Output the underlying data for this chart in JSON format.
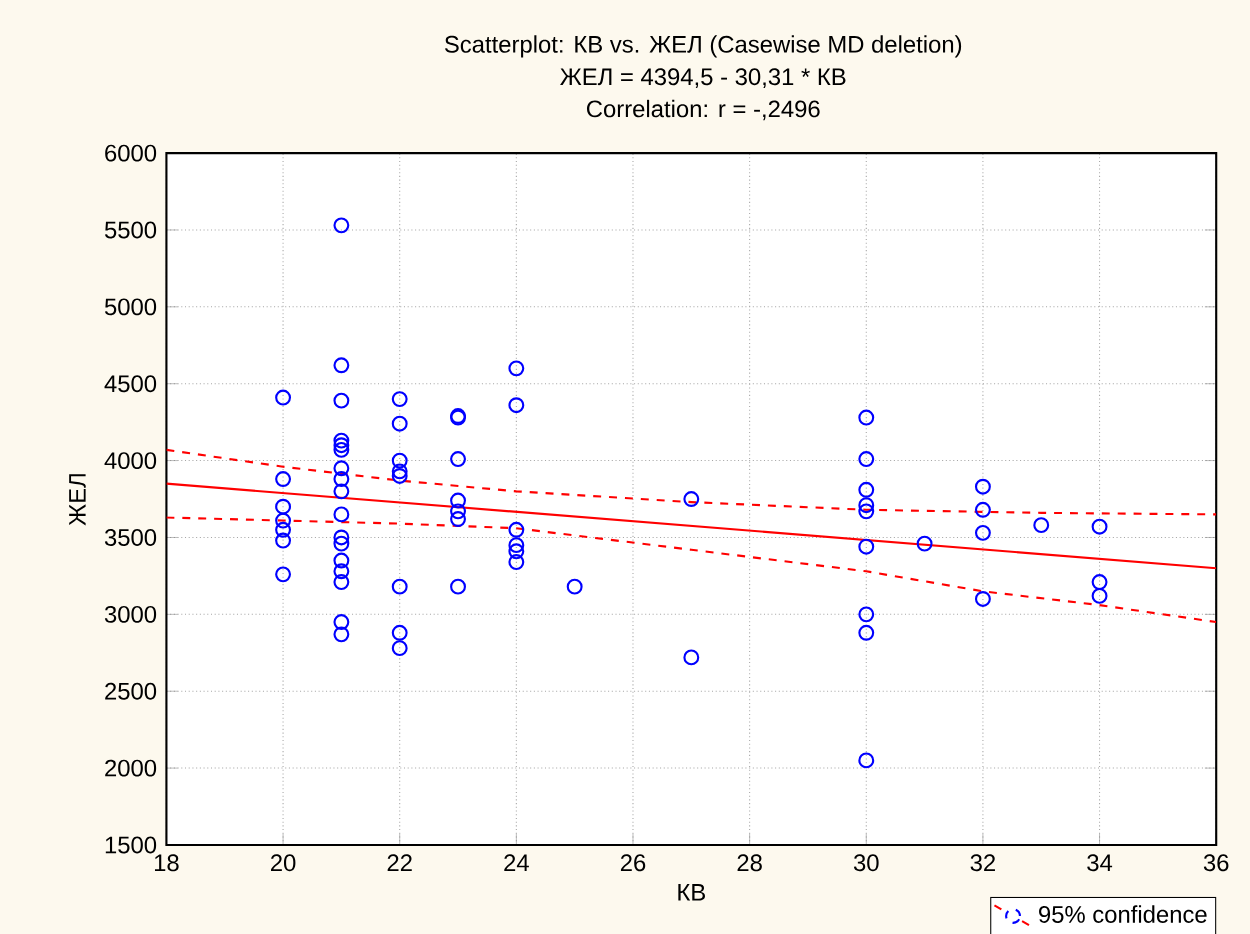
{
  "chart_data": {
    "type": "scatter",
    "title": "Scatterplot: КВ vs. ЖЕЛ (Casewise MD deletion)",
    "subtitle": "ЖЕЛ = 4394,5 - 30,31 * КВ",
    "annotations": [
      "Correlation: r = -,2496"
    ],
    "xlabel": "КВ",
    "ylabel": "ЖЕЛ",
    "xlim": [
      18,
      36
    ],
    "xticks": [
      18,
      20,
      22,
      24,
      26,
      28,
      30,
      32,
      34,
      36
    ],
    "ylim": [
      1500,
      6000
    ],
    "yticks": [
      1500,
      2000,
      2500,
      3000,
      3500,
      4000,
      4500,
      5000,
      5500,
      6000
    ],
    "grid": true,
    "legend": "bottom right",
    "series": [
      {
        "marker": "circle",
        "color": "#0000ff",
        "x": [
          20,
          20,
          20,
          20,
          20,
          20,
          20,
          21,
          21,
          21,
          21,
          21,
          21,
          21,
          21,
          21,
          21,
          21,
          21,
          21,
          21,
          21,
          21,
          21,
          22,
          22,
          22,
          22,
          22,
          22,
          22,
          22,
          23,
          23,
          23,
          23,
          23,
          23,
          23,
          24,
          24,
          24,
          24,
          24,
          24,
          25,
          27,
          27,
          30,
          30,
          30,
          30,
          30,
          30,
          30,
          30,
          30,
          31,
          32,
          32,
          32,
          32,
          33,
          34,
          34,
          34
        ],
        "values": [
          4410,
          3880,
          3700,
          3610,
          3550,
          3480,
          3260,
          5530,
          4620,
          4390,
          4130,
          4100,
          4070,
          3950,
          3880,
          3800,
          3650,
          3500,
          3460,
          3350,
          3280,
          3210,
          2950,
          2870,
          4400,
          4240,
          4000,
          3930,
          3900,
          3180,
          2880,
          2780,
          4290,
          4280,
          4010,
          3740,
          3670,
          3620,
          3180,
          4600,
          4360,
          3550,
          3450,
          3410,
          3340,
          3180,
          3750,
          2720,
          4280,
          4010,
          3810,
          3710,
          3670,
          3440,
          3000,
          2880,
          2050,
          3460,
          3830,
          3680,
          3530,
          3100,
          3580,
          3570,
          3210,
          3120
        ]
      },
      {
        "type": "line",
        "color": "#ff0000",
        "line_style": "solid",
        "x": [
          18,
          36
        ],
        "values": [
          3850,
          3300
        ]
      },
      {
        "type": "line",
        "name": "95% confidence",
        "color": "#ff0000",
        "line_style": "dashed",
        "x": [
          18,
          20,
          22,
          24,
          27,
          30,
          33,
          36
        ],
        "values": [
          4070,
          3960,
          3870,
          3800,
          3730,
          3680,
          3660,
          3650
        ]
      },
      {
        "type": "line",
        "color": "#ff0000",
        "line_style": "dashed",
        "x": [
          18,
          20,
          22,
          24,
          27,
          30,
          32,
          34,
          36
        ],
        "values": [
          3630,
          3610,
          3590,
          3560,
          3420,
          3280,
          3150,
          3060,
          2950
        ]
      }
    ]
  }
}
